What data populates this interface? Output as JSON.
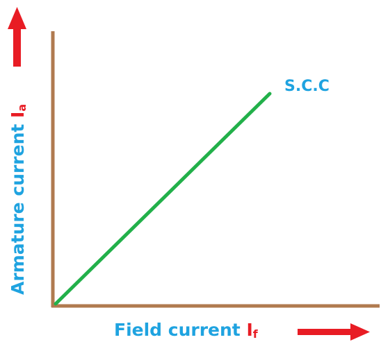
{
  "diagram": {
    "curve_label": "S.C.C",
    "x_axis": {
      "label_text": "Field current ",
      "symbol_main": "I",
      "symbol_sub": "f"
    },
    "y_axis": {
      "label_text": "Armature current ",
      "symbol_main": "I",
      "symbol_sub": "a"
    },
    "colors": {
      "axis": "#b07a4f",
      "line": "#22b04a",
      "label": "#1fa3e0",
      "symbol": "#e81c24",
      "arrow": "#e81c24"
    }
  }
}
